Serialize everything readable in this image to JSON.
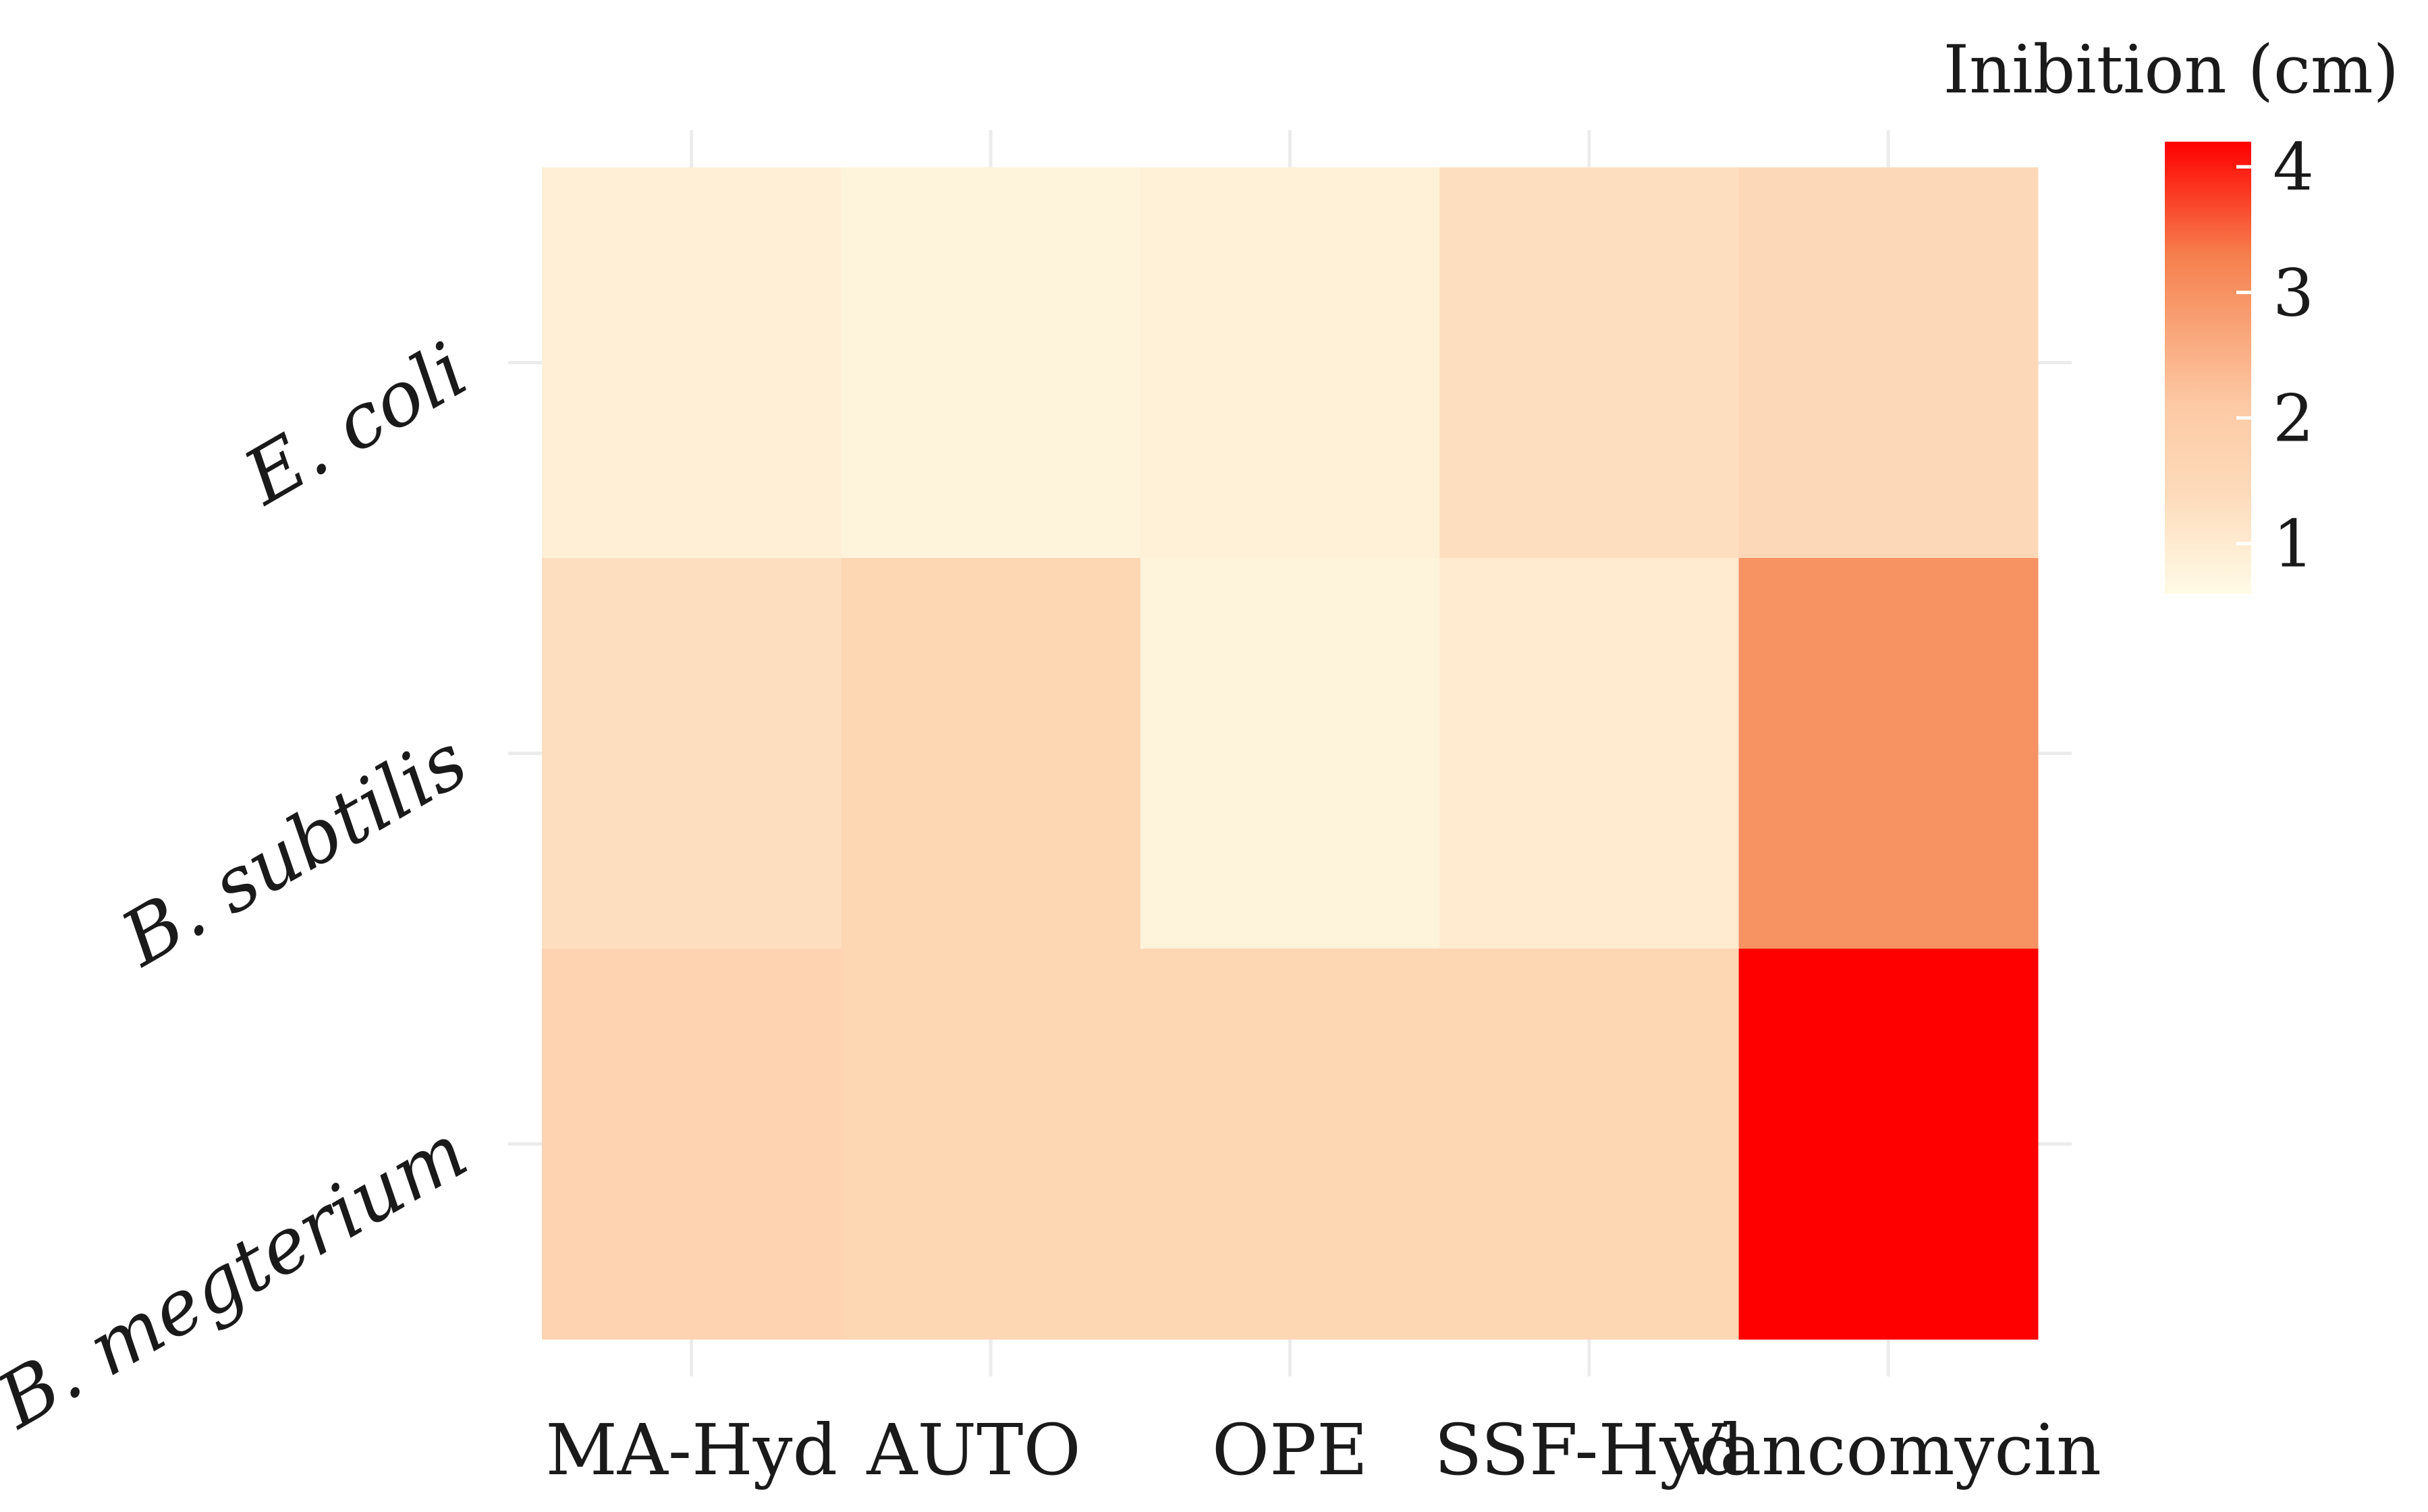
{
  "chart_data": {
    "type": "heatmap",
    "x_categories": [
      "MA-Hyd",
      "AUTO",
      "OPE",
      "SSF-Hyd",
      "Vancomycin"
    ],
    "y_categories": [
      "E. coli",
      "B. subtilis",
      "B. megterium"
    ],
    "values": [
      [
        0.9,
        0.8,
        0.85,
        1.3,
        1.5
      ],
      [
        1.3,
        1.6,
        0.8,
        1.0,
        3.0
      ],
      [
        1.7,
        1.6,
        1.6,
        1.6,
        4.2
      ]
    ],
    "xlabel": "",
    "ylabel": "",
    "legend": {
      "title": "Inibition (cm)",
      "ticks": [
        1,
        2,
        3,
        4
      ],
      "range": [
        0.6,
        4.2
      ],
      "placement": "top-right"
    },
    "color_scale": {
      "low": "#fffbe6",
      "mid_low": "#fddbbb",
      "mid": "#fdc9a4",
      "mid_high": "#f57f4d",
      "high": "#ff0000"
    },
    "grid": true
  }
}
